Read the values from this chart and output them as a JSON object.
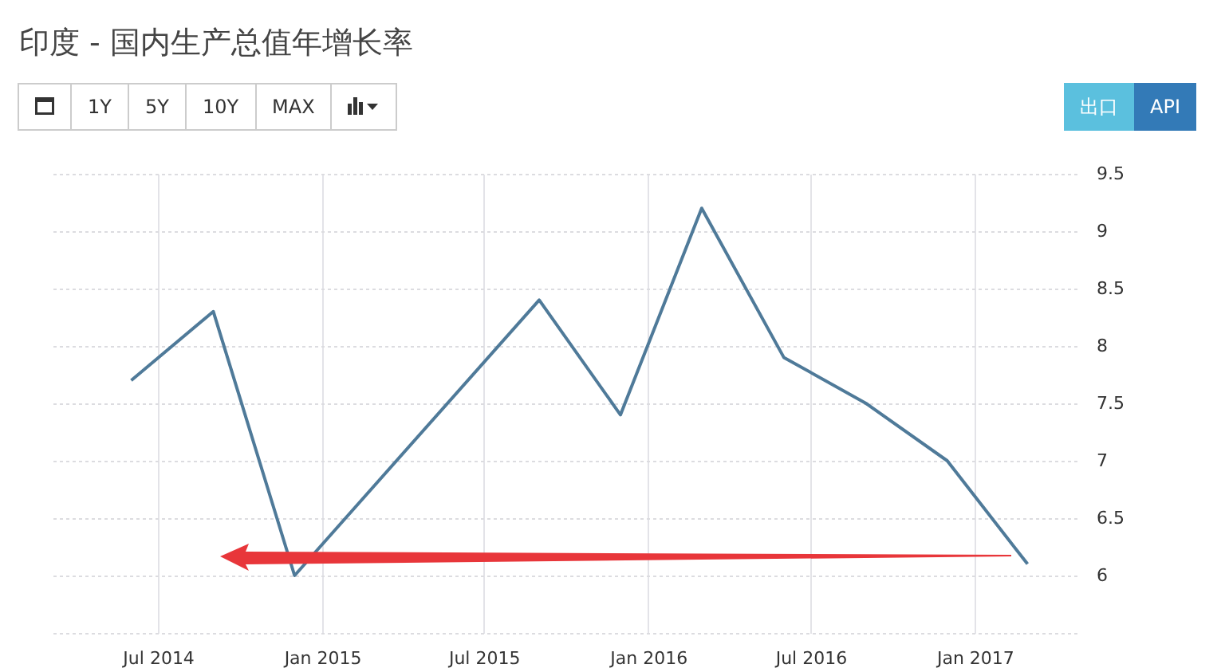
{
  "chart_data": {
    "type": "line",
    "title": "印度 - 国内生产总值年增长率",
    "annotations": [
      "1Y",
      "5Y",
      "10Y",
      "MAX",
      "出口",
      "API"
    ],
    "x": [
      "2014-06-01",
      "2014-09-01",
      "2014-12-01",
      "2015-09-01",
      "2015-12-01",
      "2016-03-01",
      "2016-06-01",
      "2016-09-01",
      "2016-12-01",
      "2017-03-01"
    ],
    "series": [
      {
        "color": "#4f7a99",
        "values": [
          7.7,
          8.3,
          6.0,
          8.4,
          7.4,
          9.2,
          7.9,
          7.5,
          7.0,
          6.1
        ]
      }
    ],
    "xlim": [
      "2014-03-05",
      "2017-04-25"
    ],
    "xticks": [
      {
        "value": "2014-07-01",
        "label": "Jul 2014"
      },
      {
        "value": "2015-01-01",
        "label": "Jan 2015"
      },
      {
        "value": "2015-07-01",
        "label": "Jul 2015"
      },
      {
        "value": "2016-01-01",
        "label": "Jan 2016"
      },
      {
        "value": "2016-07-01",
        "label": "Jul 2016"
      },
      {
        "value": "2017-01-01",
        "label": "Jan 2017"
      }
    ],
    "ylim": [
      5.5,
      9.5
    ],
    "yticks": [
      {
        "value": 5.5,
        "label": null
      },
      6,
      6.5,
      7,
      7.5,
      8,
      8.5,
      9,
      9.5
    ],
    "grid": true,
    "marker": "none",
    "line_style": "solid"
  }
}
